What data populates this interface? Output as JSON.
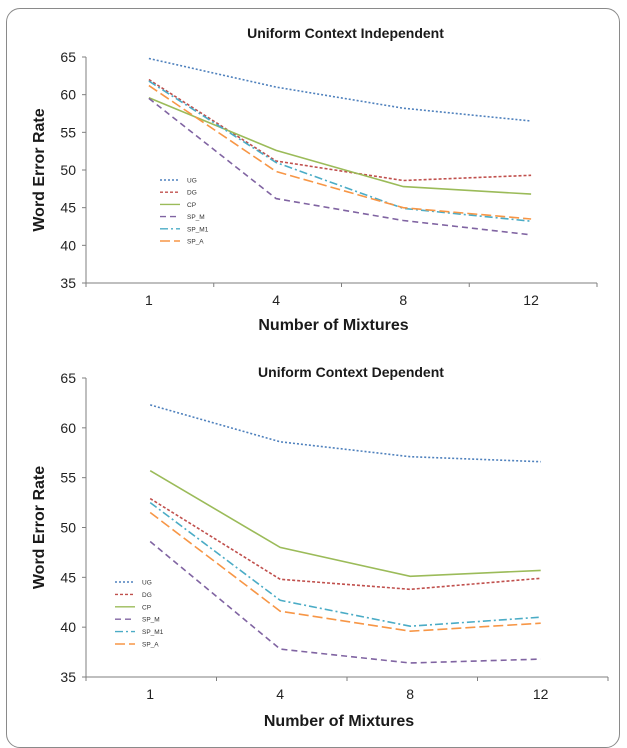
{
  "chart_data": [
    {
      "type": "line",
      "title": "Uniform Context Independent",
      "xlabel": "Number of Mixtures",
      "ylabel": "Word Error Rate",
      "categories": [
        "1",
        "4",
        "8",
        "12"
      ],
      "ylim": [
        35,
        65
      ],
      "yticks": [
        35,
        40,
        45,
        50,
        55,
        60,
        65
      ],
      "legend_position": "left-middle",
      "grid": false,
      "series": [
        {
          "name": "UG",
          "values": [
            64.8,
            61.0,
            58.2,
            56.5
          ],
          "color": "#4f81bd",
          "dash": "2,2"
        },
        {
          "name": "DG",
          "values": [
            62.0,
            51.2,
            48.6,
            49.3
          ],
          "color": "#c0504d",
          "dash": "3,2"
        },
        {
          "name": "CP",
          "values": [
            59.6,
            52.6,
            47.8,
            46.8
          ],
          "color": "#9bbb59",
          "dash": ""
        },
        {
          "name": "SP_M",
          "values": [
            59.5,
            46.2,
            43.3,
            41.4
          ],
          "color": "#8064a2",
          "dash": "6,4"
        },
        {
          "name": "SP_M1",
          "values": [
            61.8,
            51.0,
            44.9,
            43.2
          ],
          "color": "#4bacc6",
          "dash": "8,3,2,3"
        },
        {
          "name": "SP_A",
          "values": [
            61.2,
            49.8,
            45.0,
            43.5
          ],
          "color": "#f79646",
          "dash": "10,4"
        }
      ]
    },
    {
      "type": "line",
      "title": "Uniform Context Dependent",
      "xlabel": "Number of Mixtures",
      "ylabel": "Word Error Rate",
      "categories": [
        "1",
        "4",
        "8",
        "12"
      ],
      "ylim": [
        35,
        65
      ],
      "yticks": [
        35,
        40,
        45,
        50,
        55,
        60,
        65
      ],
      "legend_position": "left-middle",
      "grid": false,
      "series": [
        {
          "name": "UG",
          "values": [
            62.3,
            58.6,
            57.1,
            56.6
          ],
          "color": "#4f81bd",
          "dash": "2,2"
        },
        {
          "name": "DG",
          "values": [
            52.9,
            44.8,
            43.8,
            44.9
          ],
          "color": "#c0504d",
          "dash": "3,2"
        },
        {
          "name": "CP",
          "values": [
            55.7,
            48.0,
            45.1,
            45.7
          ],
          "color": "#9bbb59",
          "dash": ""
        },
        {
          "name": "SP_M",
          "values": [
            48.6,
            37.8,
            36.4,
            36.8
          ],
          "color": "#8064a2",
          "dash": "6,4"
        },
        {
          "name": "SP_M1",
          "values": [
            52.5,
            42.7,
            40.1,
            41.0
          ],
          "color": "#4bacc6",
          "dash": "8,3,2,3"
        },
        {
          "name": "SP_A",
          "values": [
            51.5,
            41.6,
            39.6,
            40.4
          ],
          "color": "#f79646",
          "dash": "10,4"
        }
      ]
    }
  ]
}
